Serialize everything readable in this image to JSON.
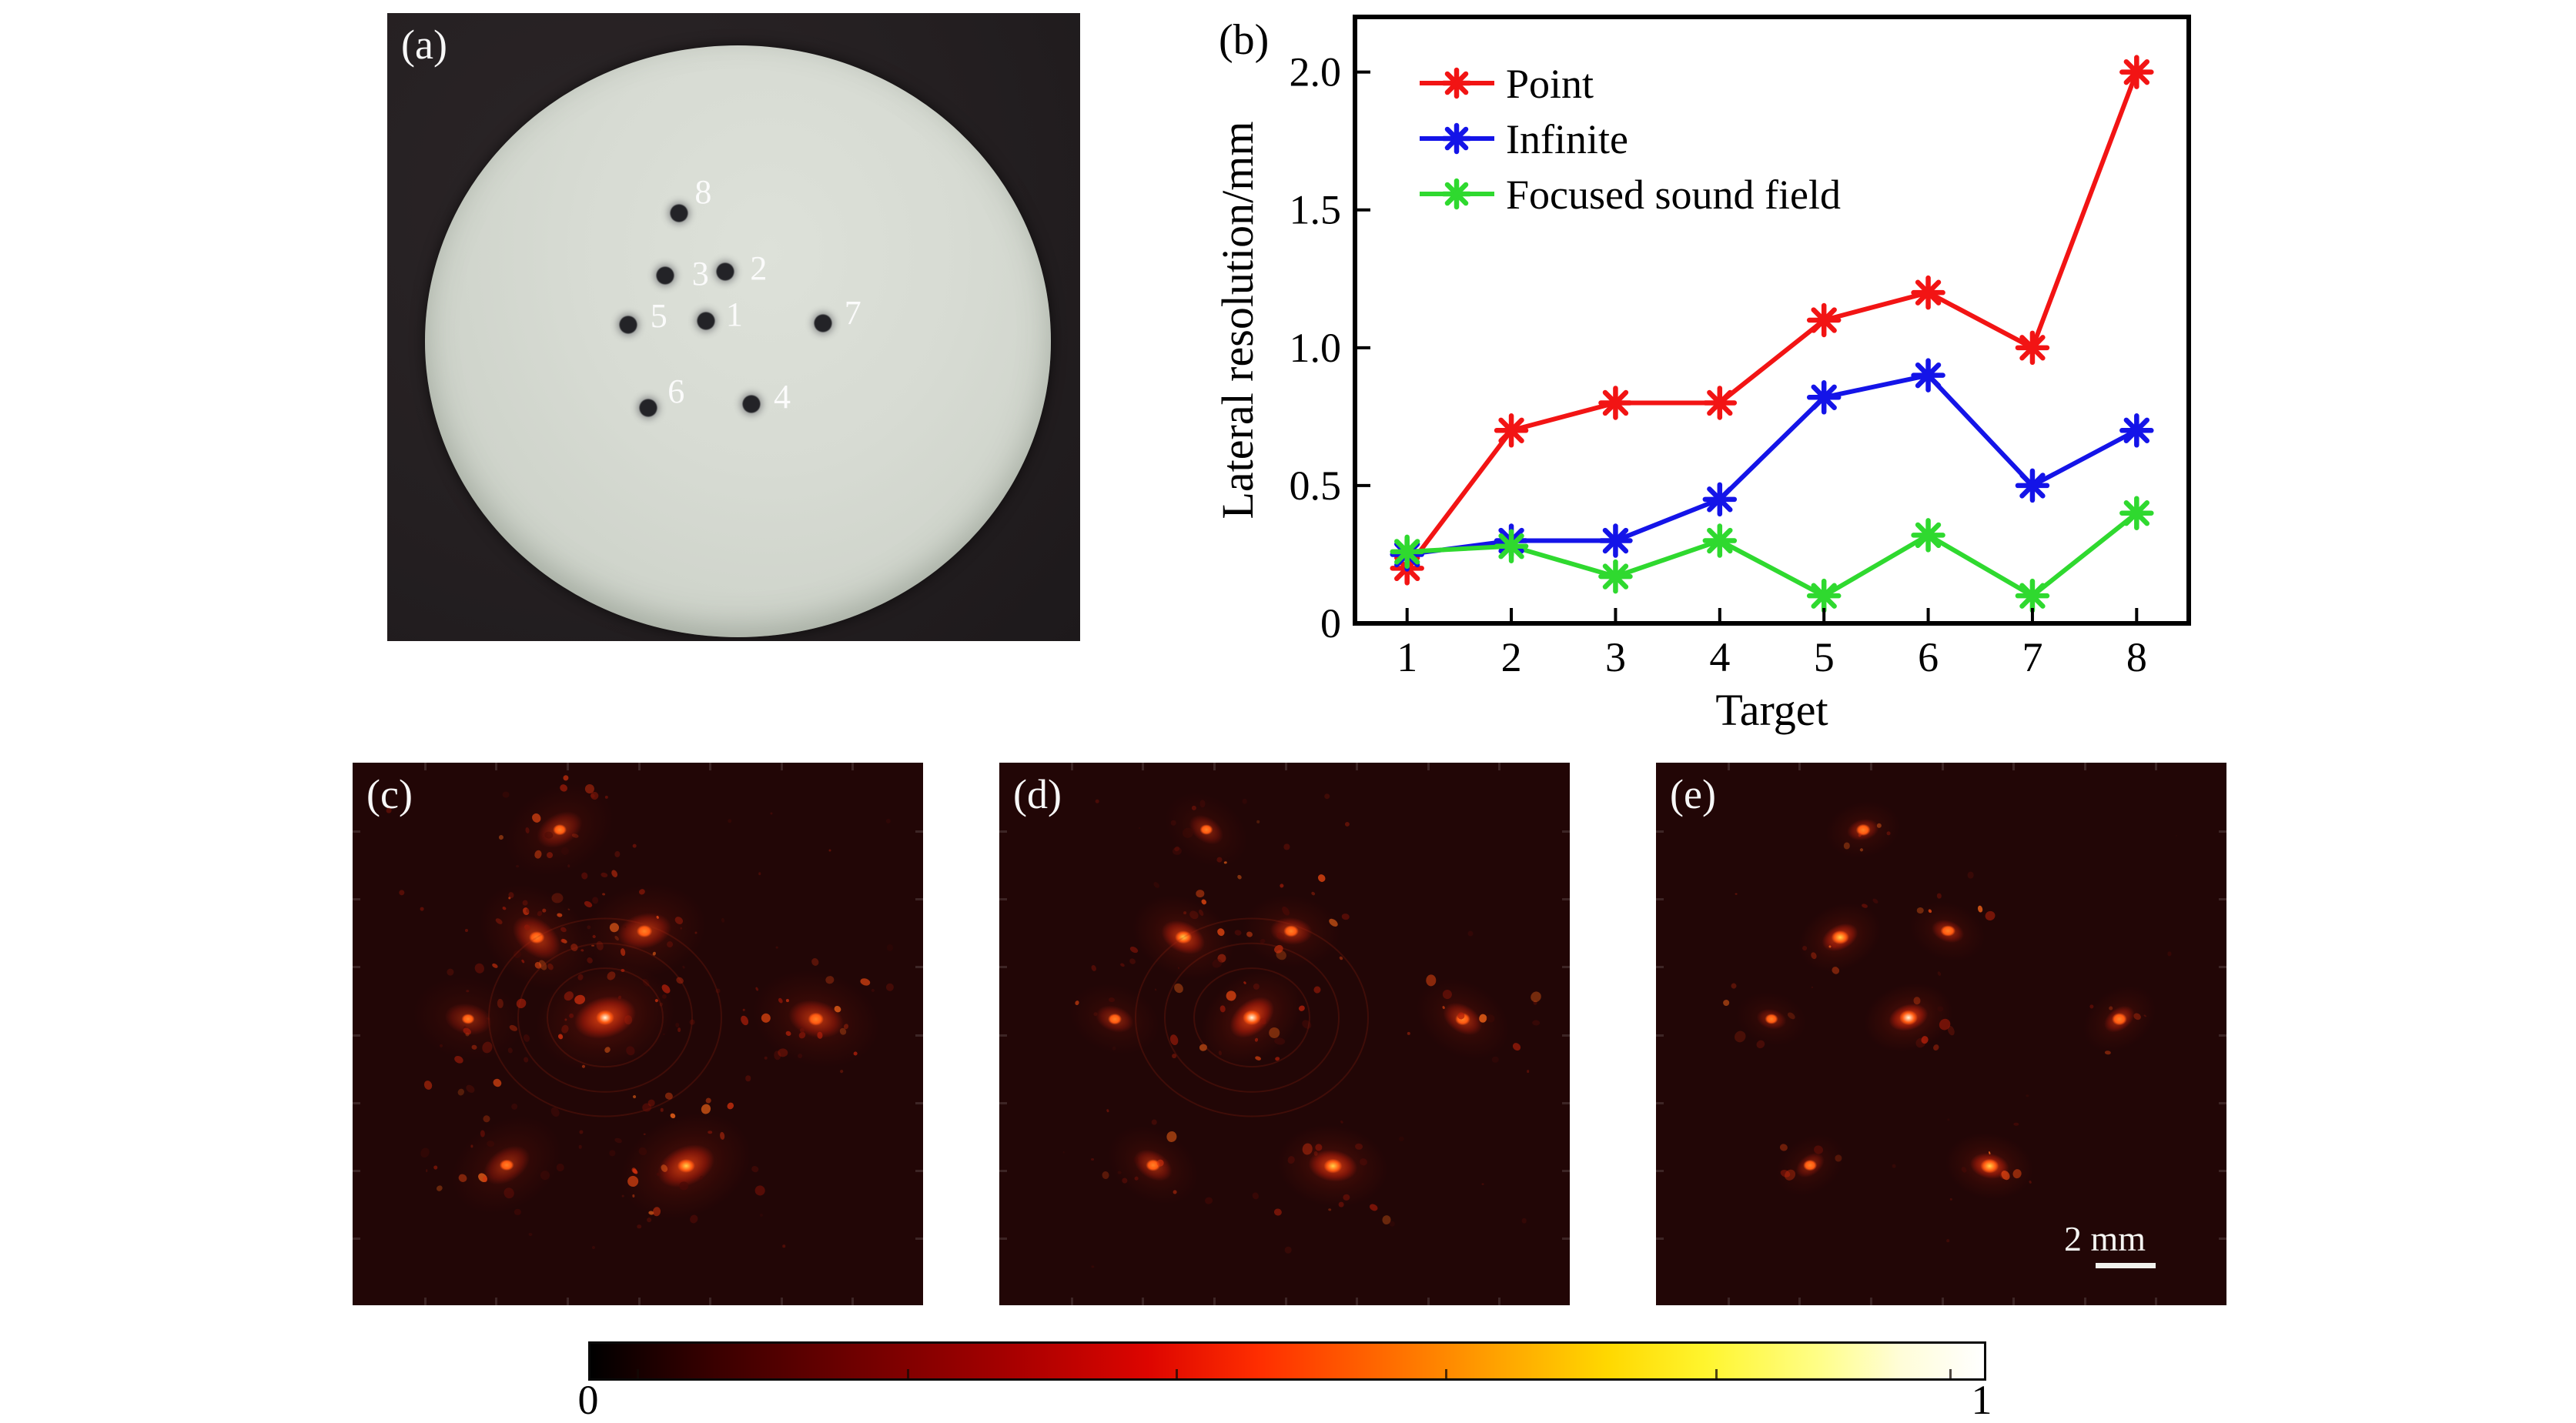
{
  "figure": {
    "panel_a": {
      "label": "(a)",
      "targets": [
        {
          "n": "8",
          "dot_x": 42.1,
          "dot_y": 31.9,
          "num_x": 45.6,
          "num_y": 28.6
        },
        {
          "n": "3",
          "dot_x": 40.1,
          "dot_y": 41.8,
          "num_x": 45.2,
          "num_y": 41.6
        },
        {
          "n": "2",
          "dot_x": 48.8,
          "dot_y": 41.2,
          "num_x": 53.6,
          "num_y": 40.7
        },
        {
          "n": "5",
          "dot_x": 34.8,
          "dot_y": 49.6,
          "num_x": 39.2,
          "num_y": 48.3
        },
        {
          "n": "1",
          "dot_x": 46.0,
          "dot_y": 49.0,
          "num_x": 50.1,
          "num_y": 48.0
        },
        {
          "n": "7",
          "dot_x": 62.9,
          "dot_y": 49.4,
          "num_x": 67.2,
          "num_y": 47.8
        },
        {
          "n": "6",
          "dot_x": 37.7,
          "dot_y": 62.9,
          "num_x": 41.7,
          "num_y": 60.3
        },
        {
          "n": "4",
          "dot_x": 52.6,
          "dot_y": 62.3,
          "num_x": 57.0,
          "num_y": 61.2
        }
      ]
    },
    "panel_b_label": "(b)",
    "images": [
      {
        "label": "(c)",
        "noise": 130,
        "spread": 1.25,
        "rings": true,
        "spots": [
          {
            "id": "8",
            "i": 0.55
          },
          {
            "id": "3",
            "i": 0.72
          },
          {
            "id": "2",
            "i": 0.74
          },
          {
            "id": "5",
            "i": 0.5
          },
          {
            "id": "1",
            "i": 1.0
          },
          {
            "id": "7",
            "i": 0.78
          },
          {
            "id": "6",
            "i": 0.6
          },
          {
            "id": "4",
            "i": 0.9
          }
        ]
      },
      {
        "label": "(d)",
        "noise": 72,
        "spread": 1.0,
        "rings": true,
        "spots": [
          {
            "id": "8",
            "i": 0.5
          },
          {
            "id": "3",
            "i": 0.85
          },
          {
            "id": "2",
            "i": 0.68
          },
          {
            "id": "5",
            "i": 0.55
          },
          {
            "id": "1",
            "i": 1.0
          },
          {
            "id": "7",
            "i": 0.7
          },
          {
            "id": "6",
            "i": 0.65
          },
          {
            "id": "4",
            "i": 0.95
          }
        ]
      },
      {
        "label": "(e)",
        "noise": 36,
        "spread": 0.8,
        "rings": false,
        "scalebar_label": "2 mm",
        "spots": [
          {
            "id": "8",
            "i": 0.6
          },
          {
            "id": "3",
            "i": 0.9
          },
          {
            "id": "2",
            "i": 0.65
          },
          {
            "id": "5",
            "i": 0.5
          },
          {
            "id": "1",
            "i": 1.0
          },
          {
            "id": "7",
            "i": 0.7
          },
          {
            "id": "6",
            "i": 0.55
          },
          {
            "id": "4",
            "i": 0.95
          }
        ]
      }
    ],
    "spot_positions": {
      "8": [
        36.3,
        12.4
      ],
      "3": [
        32.3,
        32.2
      ],
      "2": [
        51.2,
        31.0
      ],
      "5": [
        20.3,
        47.3
      ],
      "1": [
        44.3,
        47.0
      ],
      "7": [
        81.2,
        47.3
      ],
      "6": [
        27.0,
        74.2
      ],
      "4": [
        58.5,
        74.3
      ]
    },
    "colorbar": {
      "min": "0",
      "max": "1"
    }
  },
  "chart_data": {
    "type": "line",
    "title": "",
    "xlabel": "Target",
    "ylabel": "Lateral resolution/mm",
    "x": [
      1,
      2,
      3,
      4,
      5,
      6,
      7,
      8
    ],
    "xlim": [
      0.5,
      8.5
    ],
    "ylim": [
      0,
      2.2
    ],
    "xtick_labels": [
      "1",
      "2",
      "3",
      "4",
      "5",
      "6",
      "7",
      "8"
    ],
    "yticks": [
      {
        "v": 0,
        "label": "0"
      },
      {
        "v": 0.5,
        "label": "0.5"
      },
      {
        "v": 1.0,
        "label": "1.0"
      },
      {
        "v": 1.5,
        "label": "1.5"
      },
      {
        "v": 2.0,
        "label": "2.0"
      }
    ],
    "grid": false,
    "legend_position": "top-left-inside",
    "series": [
      {
        "name": "Point",
        "color": "#f21414",
        "values": [
          0.2,
          0.7,
          0.8,
          0.8,
          1.1,
          1.2,
          1.0,
          2.0
        ]
      },
      {
        "name": "Infinite",
        "color": "#1414e8",
        "values": [
          0.25,
          0.3,
          0.3,
          0.45,
          0.82,
          0.9,
          0.5,
          0.7
        ]
      },
      {
        "name": "Focused sound field",
        "color": "#2fd92f",
        "values": [
          0.26,
          0.28,
          0.17,
          0.3,
          0.1,
          0.32,
          0.1,
          0.4
        ]
      }
    ]
  }
}
